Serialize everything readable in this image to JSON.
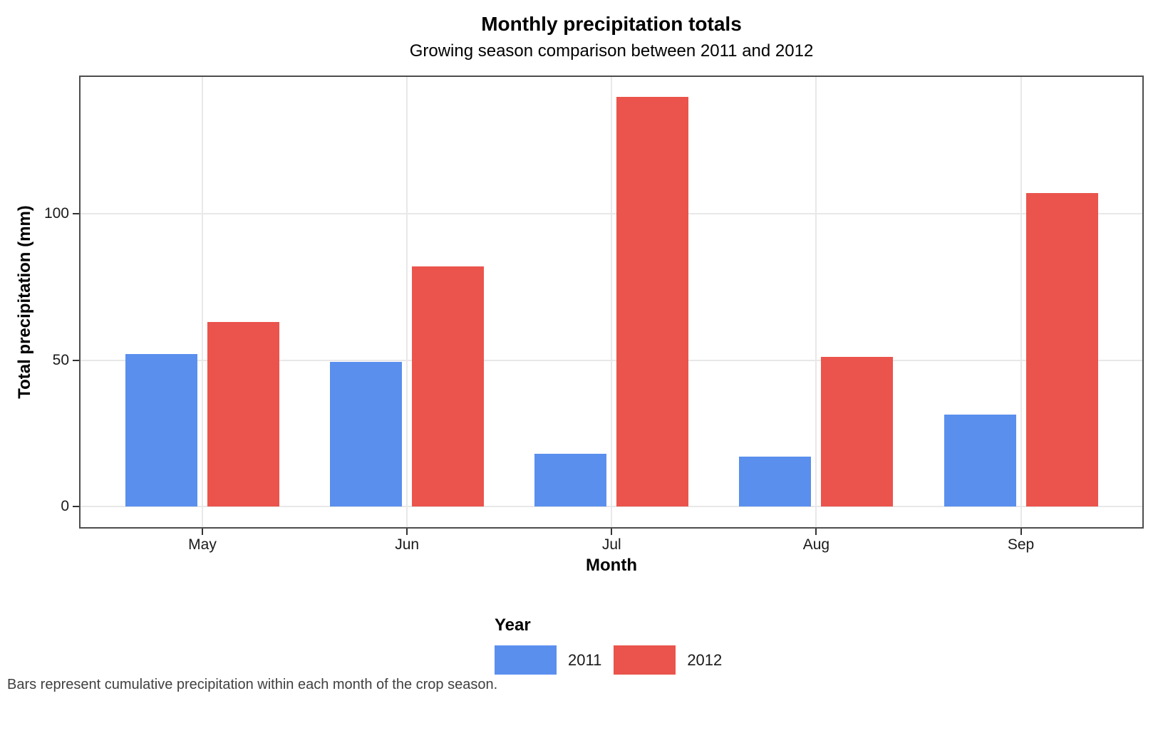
{
  "header": {
    "title": "Monthly precipitation totals",
    "subtitle": "Growing season comparison between 2011 and 2012"
  },
  "chart_data": {
    "type": "bar",
    "grouping": "dodged",
    "categories": [
      "May",
      "Jun",
      "Jul",
      "Aug",
      "Sep"
    ],
    "series": [
      {
        "name": "2011",
        "color": "#5A8FEE",
        "values": [
          52,
          49.5,
          18,
          17,
          31.5
        ]
      },
      {
        "name": "2012",
        "color": "#EA544C",
        "values": [
          63,
          82,
          140,
          51,
          107
        ]
      }
    ],
    "title": "Monthly precipitation totals",
    "subtitle": "Growing season comparison between 2011 and 2012",
    "xlabel": "Month",
    "ylabel": "Total precipitation (mm)",
    "ylim": [
      0,
      147
    ],
    "yticks": [
      0,
      50,
      100
    ],
    "legend_title": "Year",
    "legend_position": "bottom",
    "grid": true,
    "caption": "Bars represent cumulative precipitation within each month of the crop season."
  },
  "colors": {
    "background": "#FFFFFF",
    "panel_border": "#4D4D4D",
    "gridline": "#E8E8E8",
    "tick_mark": "#333333",
    "axis_text": "#1A1A1A",
    "caption_text": "#404040"
  }
}
